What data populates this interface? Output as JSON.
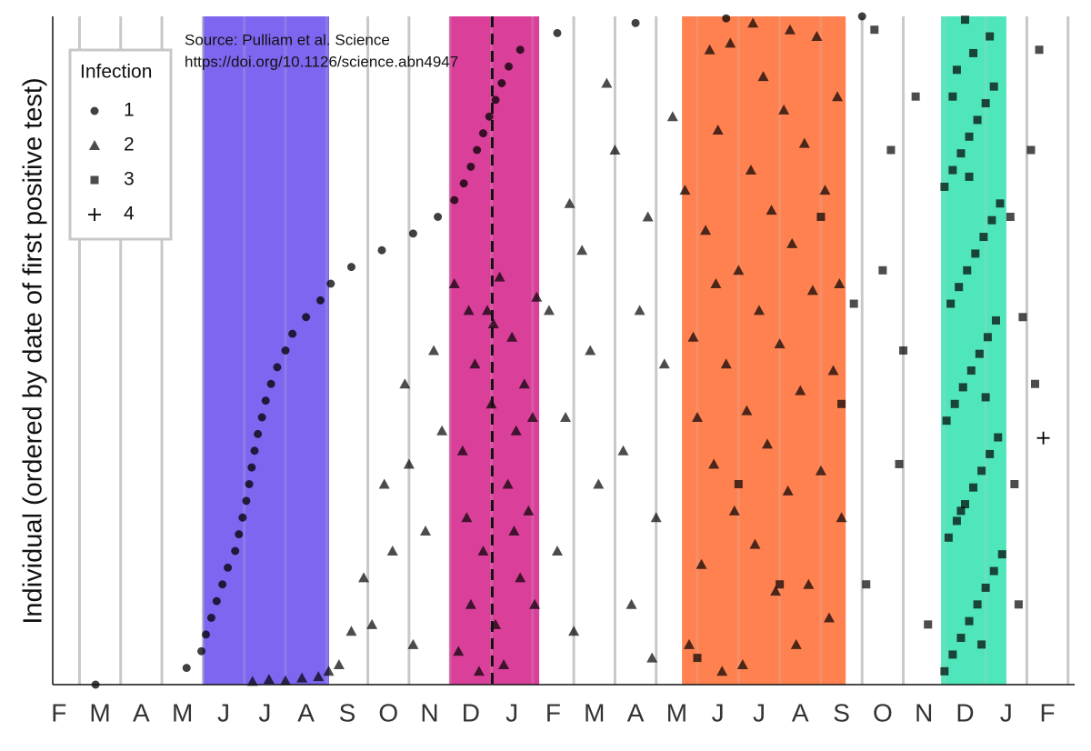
{
  "chart_data": {
    "type": "scatter",
    "y_label": "Individual (ordered by date of first positive test)",
    "annotations": [
      "Source: Pulliam et al. Science",
      "https://doi.org/10.1126/science.abn4947"
    ],
    "legend_title": "Infection",
    "legend": "top-left",
    "grid": true,
    "xlim": [
      0.35,
      25.16
    ],
    "ylim": [
      0,
      1000
    ],
    "xticks": [
      {
        "value": 0.5,
        "label": "F"
      },
      {
        "value": 1.5,
        "label": "M"
      },
      {
        "value": 2.5,
        "label": "A"
      },
      {
        "value": 3.5,
        "label": "M"
      },
      {
        "value": 4.5,
        "label": "J"
      },
      {
        "value": 5.5,
        "label": "J"
      },
      {
        "value": 6.5,
        "label": "A"
      },
      {
        "value": 7.5,
        "label": "S"
      },
      {
        "value": 8.5,
        "label": "O"
      },
      {
        "value": 9.5,
        "label": "N"
      },
      {
        "value": 10.5,
        "label": "D"
      },
      {
        "value": 11.5,
        "label": "J"
      },
      {
        "value": 12.5,
        "label": "F"
      },
      {
        "value": 13.5,
        "label": "M"
      },
      {
        "value": 14.5,
        "label": "A"
      },
      {
        "value": 15.5,
        "label": "M"
      },
      {
        "value": 16.5,
        "label": "J"
      },
      {
        "value": 17.5,
        "label": "J"
      },
      {
        "value": 18.5,
        "label": "A"
      },
      {
        "value": 19.5,
        "label": "S"
      },
      {
        "value": 20.5,
        "label": "O"
      },
      {
        "value": 21.5,
        "label": "N"
      },
      {
        "value": 22.5,
        "label": "D"
      },
      {
        "value": 23.5,
        "label": "J"
      },
      {
        "value": 24.5,
        "label": "F"
      }
    ],
    "xgrid": [
      1,
      2,
      3,
      4,
      5,
      6,
      7,
      8,
      9,
      10,
      11,
      12,
      13,
      14,
      15,
      16,
      17,
      18,
      19,
      20,
      21,
      22,
      23,
      24,
      25
    ],
    "bands": [
      {
        "start": 4.0,
        "end": 7.06,
        "color": "#7f66f0"
      },
      {
        "start": 9.98,
        "end": 12.16,
        "color": "#d9409a"
      },
      {
        "start": 15.63,
        "end": 19.6,
        "color": "#ff8150"
      },
      {
        "start": 21.92,
        "end": 23.5,
        "color": "#50e6bc"
      }
    ],
    "vline": 11.02,
    "series": [
      {
        "name": "1",
        "color": "#000000",
        "marker": "circle",
        "x": [
          1.39,
          3.6,
          3.96,
          4.07,
          4.2,
          4.33,
          4.47,
          4.6,
          4.78,
          4.87,
          4.96,
          5.05,
          5.12,
          5.18,
          5.25,
          5.33,
          5.43,
          5.52,
          5.65,
          5.8,
          6.0,
          6.17,
          6.5,
          6.85,
          7.1,
          7.6,
          8.34,
          9.1,
          9.7,
          10.1,
          10.33,
          10.5,
          10.65,
          10.8,
          10.95,
          11.1,
          11.25,
          11.42,
          11.7,
          12.6,
          14.5,
          16.7,
          20.0
        ],
        "y": [
          0,
          25,
          50,
          75,
          100,
          125,
          150,
          175,
          200,
          225,
          250,
          275,
          300,
          325,
          350,
          375,
          400,
          425,
          450,
          475,
          500,
          525,
          550,
          575,
          600,
          625,
          650,
          675,
          700,
          725,
          750,
          775,
          800,
          825,
          850,
          875,
          900,
          925,
          950,
          975,
          990,
          997,
          1000
        ]
      },
      {
        "name": "2",
        "color": "#000000",
        "marker": "triangle",
        "x": [
          10.2,
          10.5,
          10.8,
          11.1,
          11.4,
          11.7,
          12.0,
          10.3,
          10.6,
          10.9,
          11.2,
          11.5,
          11.8,
          12.1,
          10.4,
          11.0,
          11.3,
          11.6,
          11.9,
          10.7,
          10.1,
          11.05,
          11.55,
          10.45,
          12.05,
          7.3,
          7.9,
          8.4,
          8.9,
          9.4,
          9.8,
          8.1,
          8.6,
          9.1,
          9.6,
          7.6,
          9.0,
          12.4,
          12.8,
          13.2,
          13.6,
          14.0,
          14.4,
          14.8,
          15.2,
          12.6,
          13.0,
          13.4,
          13.8,
          14.2,
          14.6,
          15.0,
          15.4,
          12.9,
          14.9,
          15.8,
          16.1,
          16.4,
          16.7,
          17.0,
          17.3,
          17.6,
          17.9,
          18.2,
          18.5,
          18.8,
          19.1,
          19.4,
          15.9,
          16.2,
          16.5,
          16.8,
          17.1,
          17.4,
          17.7,
          18.0,
          18.3,
          18.6,
          18.9,
          19.2,
          19.5,
          16.0,
          16.3,
          16.6,
          16.9,
          17.2,
          17.5,
          17.8,
          18.1,
          18.4,
          18.7,
          19.0,
          19.3,
          15.7,
          16.45,
          17.35,
          18.25,
          19.45,
          5.2,
          5.6,
          6.0,
          6.4,
          6.8,
          7.05
        ],
        "y": [
          50,
          120,
          200,
          90,
          300,
          160,
          400,
          350,
          480,
          560,
          610,
          520,
          450,
          580,
          250,
          420,
          30,
          380,
          260,
          20,
          600,
          540,
          230,
          560,
          120,
          30,
          160,
          300,
          450,
          230,
          380,
          90,
          200,
          60,
          500,
          80,
          330,
          560,
          400,
          650,
          300,
          800,
          120,
          700,
          480,
          200,
          80,
          500,
          900,
          350,
          560,
          250,
          850,
          720,
          40,
          60,
          180,
          330,
          480,
          620,
          770,
          910,
          140,
          290,
          440,
          590,
          740,
          880,
          520,
          680,
          830,
          960,
          30,
          210,
          360,
          510,
          660,
          810,
          970,
          100,
          250,
          400,
          950,
          20,
          260,
          410,
          560,
          710,
          860,
          60,
          150,
          320,
          470,
          740,
          600,
          990,
          980,
          600,
          5,
          8,
          6,
          10,
          12,
          20
        ]
      },
      {
        "name": "3",
        "color": "#000000",
        "marker": "square",
        "x": [
          16.0,
          17.0,
          18.0,
          19.0,
          19.5,
          19.8,
          20.1,
          20.5,
          20.9,
          21.3,
          21.6,
          20.3,
          21.0,
          20.7,
          22.0,
          22.2,
          22.4,
          22.6,
          22.8,
          23.0,
          23.2,
          23.4,
          22.1,
          22.3,
          22.5,
          22.7,
          22.9,
          23.1,
          23.3,
          22.05,
          22.25,
          22.45,
          22.65,
          22.85,
          23.05,
          23.25,
          22.15,
          22.35,
          22.55,
          22.75,
          22.95,
          23.15,
          23.35,
          22.0,
          22.2,
          22.4,
          22.6,
          22.8,
          23.0,
          23.2,
          22.3,
          22.7,
          23.1,
          22.5,
          22.9,
          22.4,
          23.0,
          22.6,
          22.2,
          23.7,
          23.9,
          24.1,
          24.3,
          23.8,
          24.2,
          23.6
        ],
        "y": [
          40,
          300,
          150,
          700,
          420,
          570,
          150,
          620,
          330,
          880,
          90,
          980,
          500,
          800,
          20,
          45,
          70,
          95,
          120,
          145,
          170,
          195,
          220,
          245,
          270,
          295,
          320,
          345,
          370,
          395,
          420,
          445,
          470,
          495,
          520,
          545,
          570,
          595,
          620,
          645,
          670,
          695,
          720,
          745,
          770,
          795,
          820,
          845,
          870,
          895,
          920,
          945,
          970,
          995,
          60,
          260,
          430,
          760,
          880,
          300,
          550,
          800,
          950,
          120,
          450,
          700
        ]
      },
      {
        "name": "4",
        "color": "#000000",
        "marker": "plus",
        "x": [
          24.4
        ],
        "y": [
          369
        ]
      }
    ]
  }
}
